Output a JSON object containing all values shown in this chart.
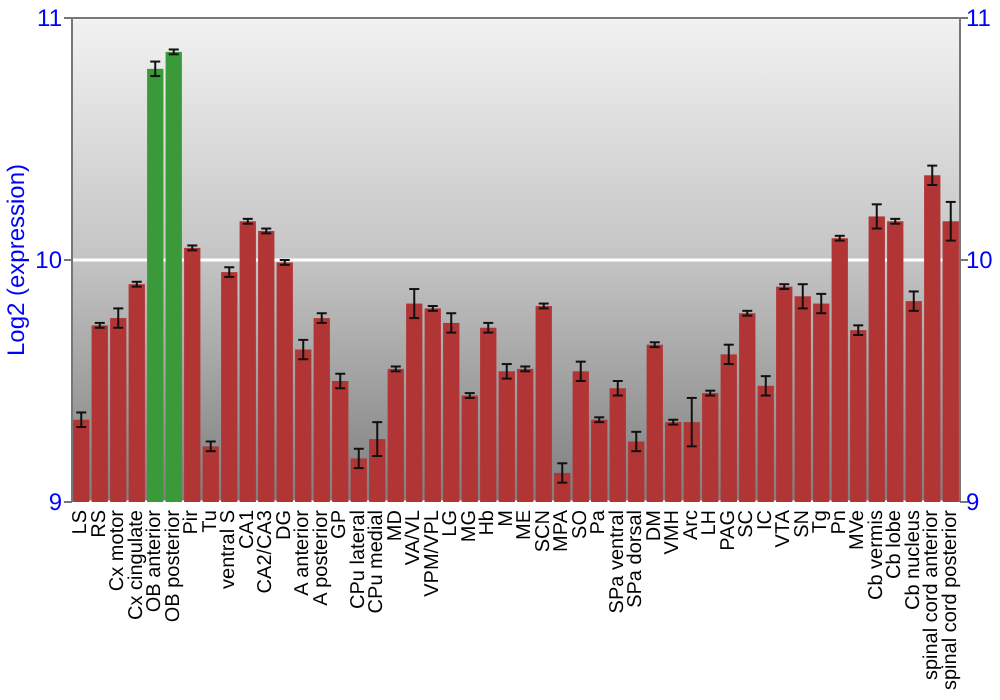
{
  "chart_data": {
    "type": "bar",
    "ylabel": "Log2 (expression)",
    "categories": [
      "LS",
      "RS",
      "Cx motor",
      "Cx cingulate",
      "OB anterior",
      "OB posterior",
      "Pir",
      "Tu",
      "ventral S",
      "CA1",
      "CA2/CA3",
      "DG",
      "A anterior",
      "A posterior",
      "GP",
      "CPu lateral",
      "CPu medial",
      "MD",
      "VA/VL",
      "VPM/VPL",
      "LG",
      "MG",
      "Hb",
      "M",
      "ME",
      "SCN",
      "MPA",
      "SO",
      "Pa",
      "SPa ventral",
      "SPa dorsal",
      "DM",
      "VMH",
      "Arc",
      "LH",
      "PAG",
      "SC",
      "IC",
      "VTA",
      "SN",
      "Tg",
      "Pn",
      "MVe",
      "Cb vermis",
      "Cb lobe",
      "Cb nucleus",
      "spinal cord anterior",
      "spinal cord posterior"
    ],
    "values": [
      9.34,
      9.73,
      9.76,
      9.9,
      10.79,
      10.86,
      10.05,
      9.23,
      9.95,
      10.16,
      10.12,
      9.99,
      9.63,
      9.76,
      9.5,
      9.18,
      9.26,
      9.55,
      9.82,
      9.8,
      9.74,
      9.44,
      9.72,
      9.54,
      9.55,
      9.81,
      9.12,
      9.54,
      9.34,
      9.47,
      9.25,
      9.65,
      9.33,
      9.33,
      9.45,
      9.61,
      9.78,
      9.48,
      9.89,
      9.85,
      9.82,
      10.09,
      9.71,
      10.18,
      10.16,
      9.83,
      10.35,
      10.16
    ],
    "errors": [
      0.03,
      0.01,
      0.04,
      0.01,
      0.03,
      0.01,
      0.01,
      0.02,
      0.02,
      0.01,
      0.01,
      0.01,
      0.04,
      0.02,
      0.03,
      0.04,
      0.07,
      0.01,
      0.06,
      0.01,
      0.04,
      0.01,
      0.02,
      0.03,
      0.01,
      0.01,
      0.04,
      0.04,
      0.01,
      0.03,
      0.04,
      0.01,
      0.01,
      0.1,
      0.01,
      0.04,
      0.01,
      0.04,
      0.01,
      0.05,
      0.04,
      0.01,
      0.02,
      0.05,
      0.01,
      0.04,
      0.04,
      0.08
    ],
    "colors": [
      "#b23535",
      "#b23535",
      "#b23535",
      "#b23535",
      "#3a9a3a",
      "#3a9a3a",
      "#b23535",
      "#b23535",
      "#b23535",
      "#b23535",
      "#b23535",
      "#b23535",
      "#b23535",
      "#b23535",
      "#b23535",
      "#b23535",
      "#b23535",
      "#b23535",
      "#b23535",
      "#b23535",
      "#b23535",
      "#b23535",
      "#b23535",
      "#b23535",
      "#b23535",
      "#b23535",
      "#b23535",
      "#b23535",
      "#b23535",
      "#b23535",
      "#b23535",
      "#b23535",
      "#b23535",
      "#b23535",
      "#b23535",
      "#b23535",
      "#b23535",
      "#b23535",
      "#b23535",
      "#b23535",
      "#b23535",
      "#b23535",
      "#b23535",
      "#b23535",
      "#b23535",
      "#b23535",
      "#b23535",
      "#b23535"
    ],
    "ylim": [
      9,
      11
    ],
    "yticks": [
      9,
      10,
      11
    ],
    "y2lim": [
      9,
      11
    ],
    "y2ticks": [
      9,
      10,
      11
    ],
    "grid": "y"
  }
}
